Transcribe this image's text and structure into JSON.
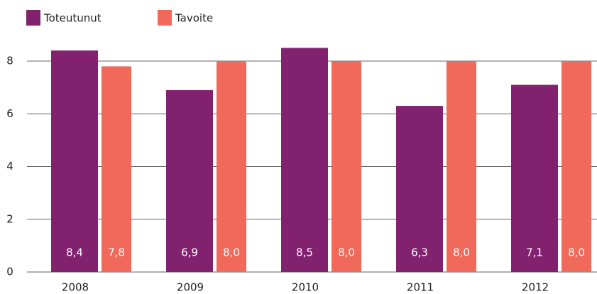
{
  "chart_data": {
    "type": "bar",
    "categories": [
      "2008",
      "2009",
      "2010",
      "2011",
      "2012"
    ],
    "series": [
      {
        "name": "Toteutunut",
        "color": "#82226f",
        "values": [
          8.4,
          6.9,
          8.5,
          6.3,
          7.1
        ],
        "value_labels": [
          "8,4",
          "6,9",
          "8,5",
          "6,3",
          "7,1"
        ]
      },
      {
        "name": "Tavoite",
        "color": "#f0695a",
        "values": [
          7.8,
          8.0,
          8.0,
          8.0,
          8.0
        ],
        "value_labels": [
          "7,8",
          "8,0",
          "8,0",
          "8,0",
          "8,0"
        ]
      }
    ],
    "ylim": [
      0,
      9
    ],
    "yticks": [
      0,
      2,
      4,
      6,
      8
    ],
    "grid": true
  }
}
